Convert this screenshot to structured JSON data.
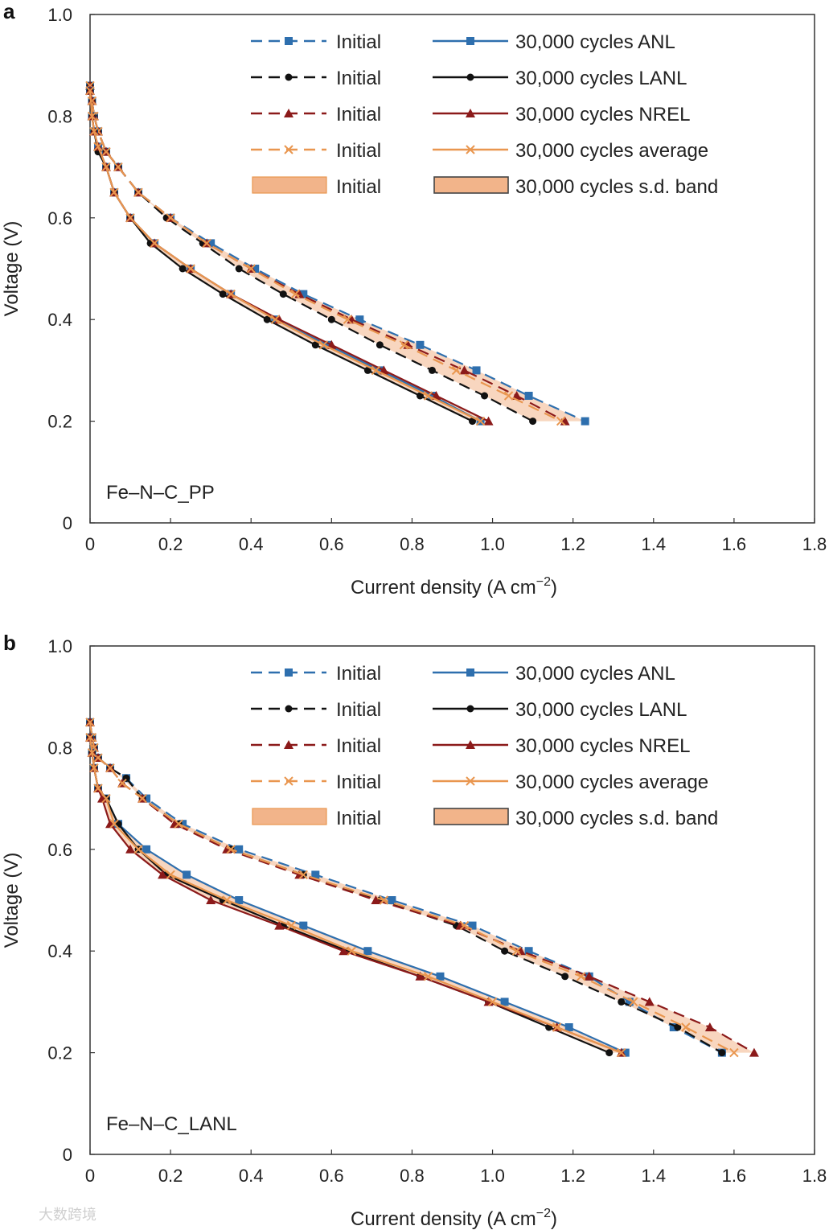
{
  "watermark": "大数跨境",
  "chart_data": [
    {
      "panel": "a",
      "type": "line",
      "sample_label": "Fe–N–C_PP",
      "xlabel": "Current density (A cm",
      "xlabel_sup": "−2",
      "xlabel_end": ")",
      "ylabel": "Voltage (V)",
      "xlim": [
        0,
        1.8
      ],
      "ylim": [
        0,
        1.0
      ],
      "xticks": [
        "0",
        "0.2",
        "0.4",
        "0.6",
        "0.8",
        "1.0",
        "1.2",
        "1.4",
        "1.6",
        "1.8"
      ],
      "yticks": [
        "0",
        "0.2",
        "0.4",
        "0.6",
        "0.8",
        "1.0"
      ],
      "legend_left": [
        "Initial",
        "Initial",
        "Initial",
        "Initial",
        "Initial"
      ],
      "legend_right": [
        "30,000 cycles ANL",
        "30,000 cycles LANL",
        "30,000 cycles NREL",
        "30,000 cycles average",
        "30,000 cycles s.d. band"
      ],
      "series": [
        {
          "name": "Initial ANL",
          "color": "#2e6fae",
          "dash": true,
          "marker": "square",
          "x": [
            0,
            0.005,
            0.01,
            0.02,
            0.04,
            0.07,
            0.12,
            0.2,
            0.3,
            0.41,
            0.53,
            0.67,
            0.82,
            0.96,
            1.09,
            1.23
          ],
          "y": [
            0.86,
            0.83,
            0.8,
            0.77,
            0.73,
            0.7,
            0.65,
            0.6,
            0.55,
            0.5,
            0.45,
            0.4,
            0.35,
            0.3,
            0.25,
            0.2
          ]
        },
        {
          "name": "Initial LANL",
          "color": "#111111",
          "dash": true,
          "marker": "circle",
          "x": [
            0,
            0.005,
            0.01,
            0.02,
            0.04,
            0.07,
            0.12,
            0.19,
            0.28,
            0.37,
            0.48,
            0.6,
            0.72,
            0.85,
            0.98,
            1.1
          ],
          "y": [
            0.86,
            0.83,
            0.8,
            0.77,
            0.73,
            0.7,
            0.65,
            0.6,
            0.55,
            0.5,
            0.45,
            0.4,
            0.35,
            0.3,
            0.25,
            0.2
          ]
        },
        {
          "name": "Initial NREL",
          "color": "#8b1a1a",
          "dash": true,
          "marker": "triangle",
          "x": [
            0,
            0.005,
            0.01,
            0.02,
            0.04,
            0.07,
            0.12,
            0.2,
            0.29,
            0.4,
            0.52,
            0.65,
            0.79,
            0.93,
            1.06,
            1.18
          ],
          "y": [
            0.86,
            0.83,
            0.8,
            0.77,
            0.73,
            0.7,
            0.65,
            0.6,
            0.55,
            0.5,
            0.45,
            0.4,
            0.35,
            0.3,
            0.25,
            0.2
          ]
        },
        {
          "name": "Initial average",
          "color": "#e9964f",
          "dash": true,
          "marker": "cross",
          "x": [
            0,
            0.005,
            0.01,
            0.02,
            0.04,
            0.07,
            0.12,
            0.2,
            0.29,
            0.4,
            0.51,
            0.64,
            0.78,
            0.91,
            1.04,
            1.17
          ],
          "y": [
            0.86,
            0.83,
            0.8,
            0.77,
            0.73,
            0.7,
            0.65,
            0.6,
            0.55,
            0.5,
            0.45,
            0.4,
            0.35,
            0.3,
            0.25,
            0.2
          ]
        },
        {
          "name": "30,000 cycles ANL",
          "color": "#2e6fae",
          "dash": false,
          "marker": "square",
          "x": [
            0,
            0.005,
            0.01,
            0.02,
            0.04,
            0.06,
            0.1,
            0.16,
            0.25,
            0.35,
            0.46,
            0.59,
            0.72,
            0.85,
            0.97
          ],
          "y": [
            0.85,
            0.8,
            0.77,
            0.74,
            0.7,
            0.65,
            0.6,
            0.55,
            0.5,
            0.45,
            0.4,
            0.35,
            0.3,
            0.25,
            0.2
          ]
        },
        {
          "name": "30,000 cycles LANL",
          "color": "#111111",
          "dash": false,
          "marker": "circle",
          "x": [
            0,
            0.005,
            0.01,
            0.02,
            0.04,
            0.06,
            0.1,
            0.15,
            0.23,
            0.33,
            0.44,
            0.56,
            0.69,
            0.82,
            0.95
          ],
          "y": [
            0.85,
            0.8,
            0.77,
            0.73,
            0.7,
            0.65,
            0.6,
            0.55,
            0.5,
            0.45,
            0.4,
            0.35,
            0.3,
            0.25,
            0.2
          ]
        },
        {
          "name": "30,000 cycles NREL",
          "color": "#8b1a1a",
          "dash": false,
          "marker": "triangle",
          "x": [
            0,
            0.005,
            0.01,
            0.02,
            0.04,
            0.06,
            0.1,
            0.16,
            0.25,
            0.35,
            0.47,
            0.6,
            0.73,
            0.86,
            0.99
          ],
          "y": [
            0.85,
            0.8,
            0.77,
            0.74,
            0.7,
            0.65,
            0.6,
            0.55,
            0.5,
            0.45,
            0.4,
            0.35,
            0.3,
            0.25,
            0.2
          ]
        },
        {
          "name": "30,000 cycles average",
          "color": "#e9964f",
          "dash": false,
          "marker": "cross",
          "x": [
            0,
            0.005,
            0.01,
            0.02,
            0.04,
            0.06,
            0.1,
            0.16,
            0.25,
            0.35,
            0.46,
            0.58,
            0.71,
            0.84,
            0.97
          ],
          "y": [
            0.85,
            0.8,
            0.77,
            0.74,
            0.7,
            0.65,
            0.6,
            0.55,
            0.5,
            0.45,
            0.4,
            0.35,
            0.3,
            0.25,
            0.2
          ]
        }
      ]
    },
    {
      "panel": "b",
      "type": "line",
      "sample_label": "Fe–N–C_LANL",
      "xlabel": "Current density (A cm",
      "xlabel_sup": "−2",
      "xlabel_end": ")",
      "ylabel": "Voltage (V)",
      "xlim": [
        0,
        1.8
      ],
      "ylim": [
        0,
        1.0
      ],
      "xticks": [
        "0",
        "0.2",
        "0.4",
        "0.6",
        "0.8",
        "1.0",
        "1.2",
        "1.4",
        "1.6",
        "1.8"
      ],
      "yticks": [
        "0",
        "0.2",
        "0.4",
        "0.6",
        "0.8",
        "1.0"
      ],
      "legend_left": [
        "Initial",
        "Initial",
        "Initial",
        "Initial",
        "Initial"
      ],
      "legend_right": [
        "30,000 cycles ANL",
        "30,000 cycles LANL",
        "30,000 cycles NREL",
        "30,000 cycles average",
        "30,000 cycles s.d. band"
      ],
      "series": [
        {
          "name": "Initial ANL",
          "color": "#2e6fae",
          "dash": true,
          "marker": "square",
          "x": [
            0,
            0.005,
            0.01,
            0.02,
            0.05,
            0.09,
            0.14,
            0.23,
            0.37,
            0.56,
            0.75,
            0.95,
            1.09,
            1.24,
            1.34,
            1.45,
            1.57
          ],
          "y": [
            0.85,
            0.82,
            0.8,
            0.78,
            0.76,
            0.74,
            0.7,
            0.65,
            0.6,
            0.55,
            0.5,
            0.45,
            0.4,
            0.35,
            0.3,
            0.25,
            0.2
          ]
        },
        {
          "name": "Initial LANL",
          "color": "#111111",
          "dash": true,
          "marker": "circle",
          "x": [
            0,
            0.005,
            0.01,
            0.02,
            0.05,
            0.09,
            0.13,
            0.22,
            0.35,
            0.53,
            0.72,
            0.91,
            1.03,
            1.18,
            1.32,
            1.46,
            1.57
          ],
          "y": [
            0.85,
            0.82,
            0.8,
            0.78,
            0.76,
            0.74,
            0.7,
            0.65,
            0.6,
            0.55,
            0.5,
            0.45,
            0.4,
            0.35,
            0.3,
            0.25,
            0.2
          ]
        },
        {
          "name": "Initial NREL",
          "color": "#8b1a1a",
          "dash": true,
          "marker": "triangle",
          "x": [
            0,
            0.005,
            0.01,
            0.02,
            0.05,
            0.08,
            0.13,
            0.21,
            0.34,
            0.52,
            0.71,
            0.92,
            1.07,
            1.24,
            1.39,
            1.54,
            1.65
          ],
          "y": [
            0.85,
            0.82,
            0.8,
            0.78,
            0.76,
            0.73,
            0.7,
            0.65,
            0.6,
            0.55,
            0.5,
            0.45,
            0.4,
            0.35,
            0.3,
            0.25,
            0.2
          ]
        },
        {
          "name": "Initial average",
          "color": "#e9964f",
          "dash": true,
          "marker": "cross",
          "x": [
            0,
            0.005,
            0.01,
            0.02,
            0.05,
            0.08,
            0.13,
            0.22,
            0.35,
            0.53,
            0.73,
            0.93,
            1.06,
            1.22,
            1.35,
            1.48,
            1.6
          ],
          "y": [
            0.85,
            0.82,
            0.8,
            0.78,
            0.76,
            0.73,
            0.7,
            0.65,
            0.6,
            0.55,
            0.5,
            0.45,
            0.4,
            0.35,
            0.3,
            0.25,
            0.2
          ]
        },
        {
          "name": "30,000 cycles ANL",
          "color": "#2e6fae",
          "dash": false,
          "marker": "square",
          "x": [
            0,
            0.005,
            0.01,
            0.02,
            0.04,
            0.07,
            0.14,
            0.24,
            0.37,
            0.53,
            0.69,
            0.87,
            1.03,
            1.19,
            1.33
          ],
          "y": [
            0.82,
            0.79,
            0.76,
            0.72,
            0.7,
            0.65,
            0.6,
            0.55,
            0.5,
            0.45,
            0.4,
            0.35,
            0.3,
            0.25,
            0.2
          ]
        },
        {
          "name": "30,000 cycles LANL",
          "color": "#111111",
          "dash": false,
          "marker": "circle",
          "x": [
            0,
            0.005,
            0.01,
            0.02,
            0.04,
            0.07,
            0.12,
            0.19,
            0.33,
            0.48,
            0.64,
            0.82,
            0.99,
            1.14,
            1.29
          ],
          "y": [
            0.82,
            0.79,
            0.76,
            0.72,
            0.7,
            0.65,
            0.6,
            0.55,
            0.5,
            0.45,
            0.4,
            0.35,
            0.3,
            0.25,
            0.2
          ]
        },
        {
          "name": "30,000 cycles NREL",
          "color": "#8b1a1a",
          "dash": false,
          "marker": "triangle",
          "x": [
            0,
            0.005,
            0.01,
            0.02,
            0.03,
            0.05,
            0.1,
            0.18,
            0.3,
            0.47,
            0.63,
            0.82,
            0.99,
            1.16,
            1.32
          ],
          "y": [
            0.82,
            0.79,
            0.76,
            0.72,
            0.7,
            0.65,
            0.6,
            0.55,
            0.5,
            0.45,
            0.4,
            0.35,
            0.3,
            0.25,
            0.2
          ]
        },
        {
          "name": "30,000 cycles average",
          "color": "#e9964f",
          "dash": false,
          "marker": "cross",
          "x": [
            0,
            0.005,
            0.01,
            0.02,
            0.04,
            0.06,
            0.12,
            0.2,
            0.34,
            0.5,
            0.65,
            0.84,
            1.0,
            1.16,
            1.32
          ],
          "y": [
            0.82,
            0.79,
            0.76,
            0.72,
            0.7,
            0.65,
            0.6,
            0.55,
            0.5,
            0.45,
            0.4,
            0.35,
            0.3,
            0.25,
            0.2
          ]
        }
      ]
    }
  ]
}
